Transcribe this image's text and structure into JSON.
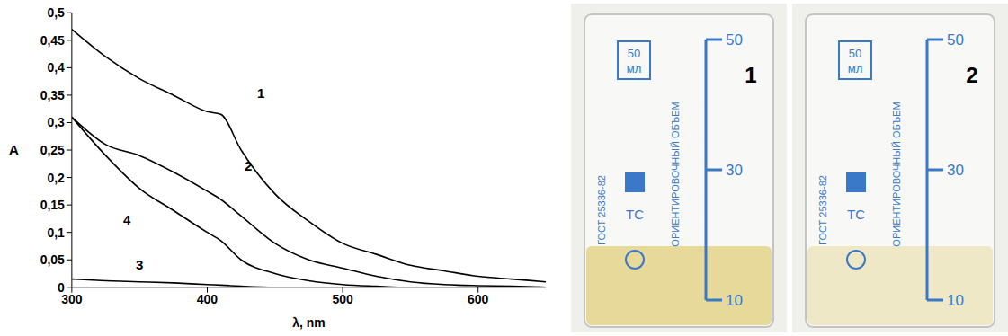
{
  "chart_data": {
    "type": "line",
    "x_label": "λ, nm",
    "y_label": "A",
    "x": [
      300,
      325,
      350,
      375,
      400,
      410,
      425,
      450,
      475,
      500,
      525,
      550,
      575,
      600,
      625,
      650
    ],
    "series": [
      {
        "name": "1",
        "color": "#000000",
        "values": [
          0.47,
          0.42,
          0.38,
          0.35,
          0.32,
          0.315,
          0.25,
          0.17,
          0.12,
          0.08,
          0.06,
          0.04,
          0.03,
          0.02,
          0.015,
          0.01
        ]
      },
      {
        "name": "2",
        "color": "#000000",
        "values": [
          0.31,
          0.26,
          0.24,
          0.21,
          0.175,
          0.16,
          0.13,
          0.08,
          0.05,
          0.035,
          0.02,
          0.01,
          0.005,
          0.003,
          0.002,
          0
        ]
      },
      {
        "name": "3",
        "color": "#000000",
        "values": [
          0.015,
          0.012,
          0.01,
          0.008,
          0.005,
          0.004,
          0.002,
          0,
          0,
          0,
          0,
          0,
          0,
          0,
          0,
          0
        ]
      },
      {
        "name": "4",
        "color": "#000000",
        "values": [
          0.31,
          0.24,
          0.18,
          0.14,
          0.1,
          0.085,
          0.05,
          0.025,
          0.012,
          0.005,
          0.002,
          0,
          0,
          0,
          0,
          0
        ]
      }
    ],
    "xlim": [
      300,
      650
    ],
    "xticks": [
      300,
      400,
      500,
      600
    ],
    "ylim": [
      0,
      0.5
    ],
    "yticks": [
      0,
      {
        "value": 0.05,
        "label": "0,05"
      },
      {
        "value": 0.1,
        "label": "0,1"
      },
      {
        "value": 0.15,
        "label": "0,15"
      },
      {
        "value": 0.2,
        "label": "0,2"
      },
      {
        "value": 0.25,
        "label": "0,25"
      },
      {
        "value": 0.3,
        "label": "0,3"
      },
      {
        "value": 0.35,
        "label": "0,35"
      },
      {
        "value": 0.4,
        "label": "0,4"
      },
      {
        "value": 0.45,
        "label": "0,45"
      },
      {
        "value": 0.5,
        "label": "0,5"
      }
    ],
    "grid": false
  },
  "photo": {
    "beakers": [
      {
        "label": "1",
        "liquid_color": "#e6d99a"
      },
      {
        "label": "2",
        "liquid_color": "#eee8c6"
      }
    ],
    "markings": {
      "capacity": "50 мл",
      "scale": [
        50,
        30,
        10
      ],
      "standard": "ГОСТ 25336-82",
      "note": "ОРИЕНТИРОВОЧНЫЙ ОБЪЕМ",
      "class": "ТС"
    }
  }
}
